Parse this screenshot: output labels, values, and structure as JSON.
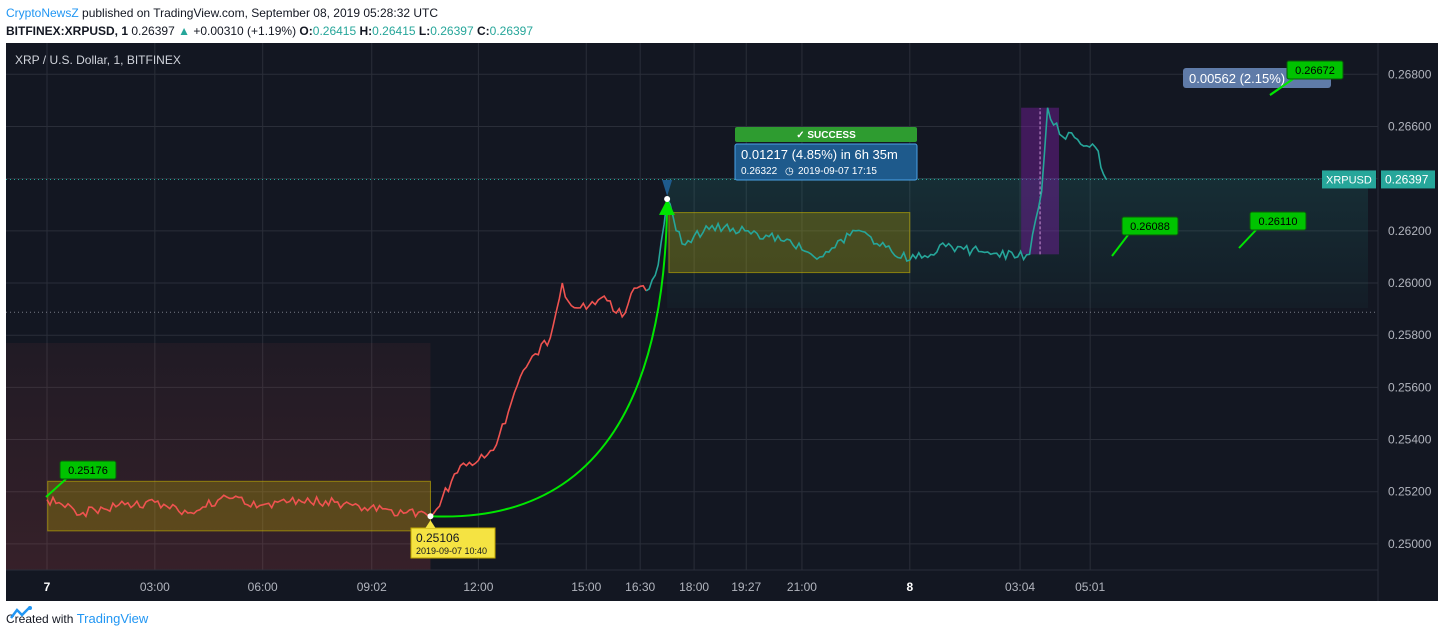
{
  "header": {
    "author": "CryptoNewsZ",
    "published": "published on TradingView.com, September 08, 2019 05:28:32 UTC",
    "symbol": "BITFINEX:XRPUSD, 1",
    "last": "0.26397",
    "change": "+0.00310 (+1.19%)",
    "o_label": "O:",
    "o": "0.26415",
    "h_label": "H:",
    "h": "0.26415",
    "l_label": "L:",
    "l": "0.26397",
    "c_label": "C:",
    "c": "0.26397"
  },
  "footer": {
    "created_with": "Created with",
    "brand": "TradingView"
  },
  "colors": {
    "background": "#131722",
    "down": "#ef5350",
    "up": "#26a69a",
    "arrow": "#00e600",
    "box": "#c8b400",
    "range_box": "#7b1fa2",
    "label_green": "#00c300",
    "callout_blue": "#1e5a8c",
    "callout_gray": "#5f7ba8",
    "success": "#2e9c30"
  },
  "chart_data": {
    "type": "line",
    "title": "XRP / U.S. Dollar, 1, BITFINEX",
    "series": [
      {
        "name": "XRPUSD",
        "x": [
          "7 00:00",
          "7 01:00",
          "7 02:00",
          "7 03:00",
          "7 04:00",
          "7 05:00",
          "7 06:00",
          "7 07:00",
          "7 08:00",
          "7 09:00",
          "7 10:00",
          "7 10:40",
          "7 11:00",
          "7 11:30",
          "7 12:00",
          "7 12:30",
          "7 13:00",
          "7 13:30",
          "7 14:00",
          "7 14:20",
          "7 14:30",
          "7 15:00",
          "7 15:30",
          "7 16:00",
          "7 16:20",
          "7 16:40",
          "7 17:00",
          "7 17:15",
          "7 17:40",
          "7 18:30",
          "7 19:30",
          "7 20:30",
          "7 21:30",
          "7 22:30",
          "7 23:30",
          "8 00:00",
          "8 01:00",
          "8 02:00",
          "8 03:00",
          "8 03:20",
          "8 03:40",
          "8 03:50",
          "8 04:10",
          "8 04:40",
          "8 05:10",
          "8 05:28"
        ],
        "values": [
          0.2517,
          0.2512,
          0.2515,
          0.2516,
          0.2512,
          0.2518,
          0.2515,
          0.2517,
          0.2516,
          0.2514,
          0.2512,
          0.25106,
          0.2518,
          0.253,
          0.2532,
          0.2538,
          0.2558,
          0.2572,
          0.2579,
          0.26,
          0.2593,
          0.259,
          0.2595,
          0.2587,
          0.2598,
          0.2597,
          0.2607,
          0.26322,
          0.2615,
          0.2622,
          0.262,
          0.2616,
          0.261,
          0.262,
          0.2612,
          0.26088,
          0.2614,
          0.2612,
          0.261,
          0.2611,
          0.2635,
          0.26672,
          0.2657,
          0.2655,
          0.2652,
          0.26397
        ]
      }
    ],
    "y_ticks": [
      "0.26800",
      "0.26600",
      "0.26400",
      "0.26200",
      "0.26000",
      "0.25800",
      "0.25600",
      "0.25400",
      "0.25200",
      "0.25000"
    ],
    "x_ticks": [
      "7",
      "03:00",
      "06:00",
      "09:02",
      "12:00",
      "15:00",
      "16:30",
      "18:00",
      "19:27",
      "21:00",
      "8",
      "03:04",
      "05:01"
    ],
    "ylim": [
      0.249,
      0.2692
    ],
    "last_price_label": "XRPUSD",
    "last_price_value": "0.26397",
    "annotations": {
      "label_25176": "0.25176",
      "label_25106": "0.25106",
      "label_25106_date": "2019-09-07 10:40",
      "success": "✓ SUCCESS",
      "measure_main": "0.01217 (4.85%) in 6h 35m",
      "measure_price": "0.26322",
      "measure_date": "2019-09-07  17:15",
      "label_26088": "0.26088",
      "label_26110": "0.26110",
      "label_26672": "0.26672",
      "range_text": "0.00562 (2.15%)"
    }
  }
}
